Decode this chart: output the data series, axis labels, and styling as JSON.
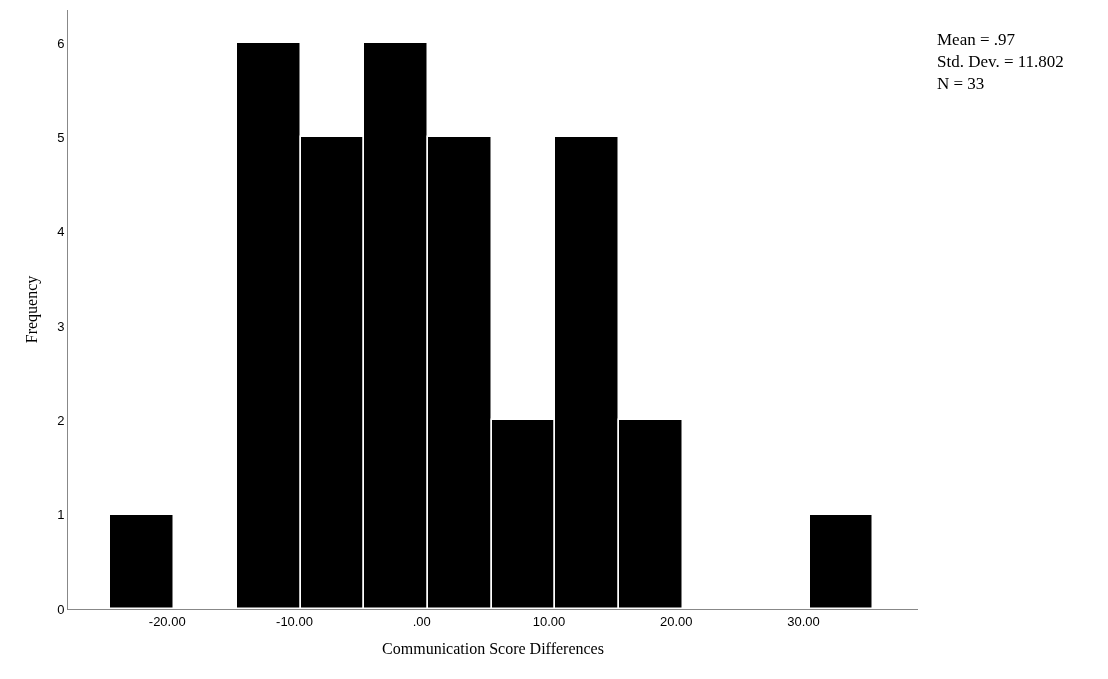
{
  "chart_data": {
    "type": "histogram",
    "xlabel": "Communication Score Differences",
    "ylabel": "Frequency",
    "bins": [
      -24.5,
      -19.5,
      -14.5,
      -9.5,
      -4.5,
      0.5,
      5.5,
      10.5,
      15.5,
      20.5,
      25.5,
      30.5,
      35.5
    ],
    "values": [
      1,
      0,
      6,
      5,
      6,
      5,
      2,
      5,
      2,
      0,
      0,
      1
    ],
    "color": "#000000",
    "xlim": [
      -27.8,
      39
    ],
    "ylim": [
      0,
      6.35
    ],
    "xticks": [
      {
        "value": -20,
        "label": "-20.00"
      },
      {
        "value": -10,
        "label": "-10.00"
      },
      {
        "value": 0,
        "label": ".00"
      },
      {
        "value": 10,
        "label": "10.00"
      },
      {
        "value": 20,
        "label": "20.00"
      },
      {
        "value": 30,
        "label": "30.00"
      }
    ],
    "yticks": [
      0,
      1,
      2,
      3,
      4,
      5,
      6
    ],
    "annotations": [
      "Mean = .97",
      "Std. Dev. = 11.802",
      "N = 33"
    ]
  }
}
